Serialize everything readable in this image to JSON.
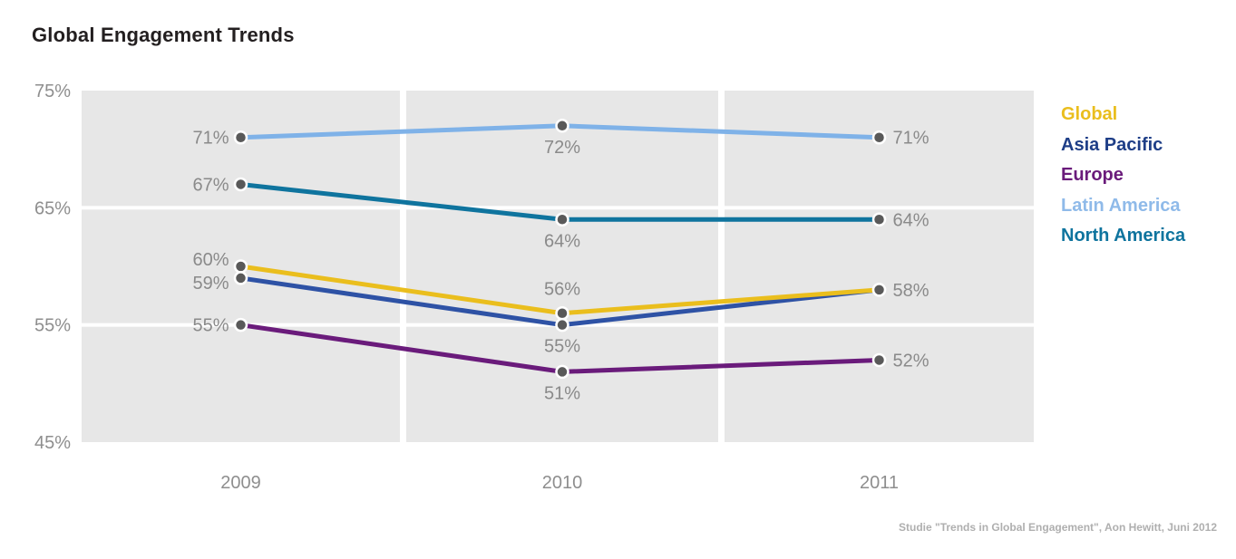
{
  "title": "Global Engagement Trends",
  "footer": "Studie \"Trends in Global Engagement\", Aon Hewitt, Juni 2012",
  "colors": {
    "plot_bg": "#E7E7E7",
    "grid": "#FFFFFF",
    "marker": "#595959",
    "marker_ring": "#FFFFFF",
    "data_label": "#8A8A8A",
    "tick_label": "#8E8E8E",
    "title": "#231F20",
    "footer": "#AFAFAF"
  },
  "chart_data": {
    "type": "line",
    "title": "Global Engagement Trends",
    "categories": [
      "2009",
      "2010",
      "2011"
    ],
    "series": [
      {
        "name": "Global",
        "color": "#EABE1D",
        "legend_color": "#EABE1D",
        "values": [
          60,
          56,
          58
        ],
        "point_labels": [
          "60%",
          "56%",
          "58%"
        ],
        "label_pos": [
          {
            "pos": "left",
            "dy": -8
          },
          {
            "pos": "above",
            "dy": 0
          },
          {
            "pos": "right",
            "dy": 0
          }
        ]
      },
      {
        "name": "Asia Pacific",
        "color": "#2E52A5",
        "legend_color": "#1E3E87",
        "values": [
          59,
          55,
          58
        ],
        "point_labels": [
          "59%",
          "55%",
          ""
        ],
        "label_pos": [
          {
            "pos": "left",
            "dy": 5
          },
          {
            "pos": "below",
            "dy": 0
          },
          {
            "pos": "none",
            "dy": 0
          }
        ]
      },
      {
        "name": "Europe",
        "color": "#6A1B7B",
        "legend_color": "#6A1B7B",
        "values": [
          55,
          51,
          52
        ],
        "point_labels": [
          "55%",
          "51%",
          "52%"
        ],
        "label_pos": [
          {
            "pos": "left",
            "dy": 0
          },
          {
            "pos": "below",
            "dy": 0
          },
          {
            "pos": "right",
            "dy": 0
          }
        ]
      },
      {
        "name": "Latin America",
        "color": "#7FB2E8",
        "legend_color": "#8FBAE9",
        "values": [
          71,
          72,
          71
        ],
        "point_labels": [
          "71%",
          "72%",
          "71%"
        ],
        "label_pos": [
          {
            "pos": "left",
            "dy": 0
          },
          {
            "pos": "below",
            "dy": 0
          },
          {
            "pos": "right",
            "dy": 0
          }
        ]
      },
      {
        "name": "North America",
        "color": "#0F749E",
        "legend_color": "#0F749E",
        "values": [
          67,
          64,
          64
        ],
        "point_labels": [
          "67%",
          "64%",
          "64%"
        ],
        "label_pos": [
          {
            "pos": "left",
            "dy": 0
          },
          {
            "pos": "below",
            "dy": 0
          },
          {
            "pos": "right",
            "dy": 0
          }
        ]
      }
    ],
    "ylim": [
      45,
      75
    ],
    "ytick_values": [
      75,
      65,
      55,
      45
    ],
    "ytick_labels": [
      "75%",
      "65%",
      "55%",
      "45%"
    ],
    "grid_values": [
      65,
      55
    ],
    "legend_position": "right",
    "grid": "horizontal-white-on-gray-panels"
  }
}
